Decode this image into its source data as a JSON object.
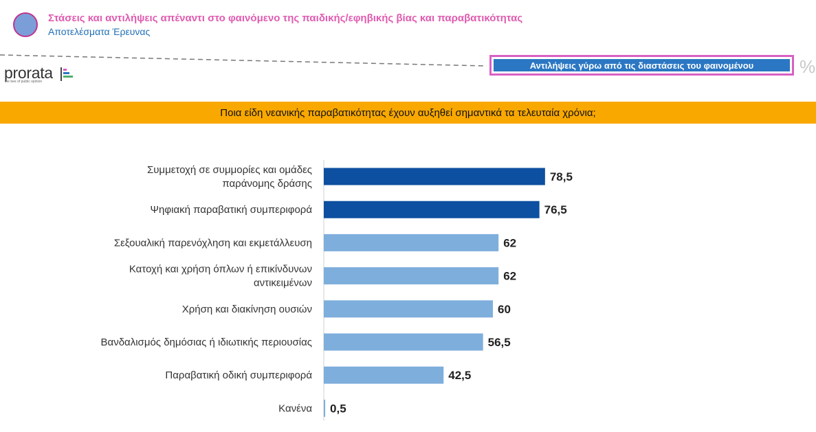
{
  "header": {
    "title": "Στάσεις και αντιλήψεις απέναντι στο φαινόμενο της παιδικής/εφηβικής βίας και παραβατικότητας",
    "subtitle": "Αποτελέσματα Έρευνας"
  },
  "logo": {
    "text": "prorata",
    "tagline": "the bee of public opinion"
  },
  "section": {
    "label": "Αντιλήψεις γύρω από τις διαστάσεις του φαινομένου",
    "unit": "%"
  },
  "question": "Ποια είδη νεανικής παραβατικότητας έχουν αυξηθεί σημαντικά τα τελευταία χρόνια;",
  "colors": {
    "dark_bar": "#0d4fa0",
    "light_bar": "#7eaedc",
    "question_bg": "#f9a800",
    "section_bg": "#2b77c3",
    "section_border": "#d860c4",
    "title": "#e05bb0"
  },
  "chart_data": {
    "type": "bar",
    "orientation": "horizontal",
    "title": "Ποια είδη νεανικής παραβατικότητας έχουν αυξηθεί σημαντικά τα τελευταία χρόνια;",
    "categories": [
      [
        "Συμμετοχή σε συμμορίες και ομάδες",
        "παράνομης δράσης"
      ],
      [
        "Ψηφιακή παραβατική συμπεριφορά"
      ],
      [
        "Σεξουαλική παρενόχληση και εκμετάλλευση"
      ],
      [
        "Κατοχή και χρήση όπλων ή επικίνδυνων",
        "αντικειμένων"
      ],
      [
        "Χρήση και διακίνηση ουσιών"
      ],
      [
        "Βανδαλισμός δημόσιας ή ιδιωτικής περιουσίας"
      ],
      [
        "Παραβατική οδική συμπεριφορά"
      ],
      [
        "Κανένα"
      ]
    ],
    "values": [
      78.5,
      76.5,
      62,
      62,
      60,
      56.5,
      42.5,
      0.5
    ],
    "value_labels": [
      "78,5",
      "76,5",
      "62",
      "62",
      "60",
      "56,5",
      "42,5",
      "0,5"
    ],
    "highlight_top": 2,
    "xlim": [
      0,
      100
    ],
    "grid": false,
    "legend": "none"
  }
}
